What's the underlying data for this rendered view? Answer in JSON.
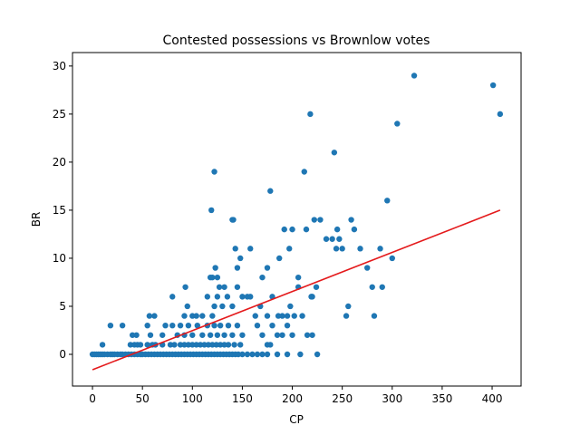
{
  "chart_data": {
    "type": "scatter",
    "title": "Contested possessions vs Brownlow votes",
    "xlabel": "CP",
    "ylabel": "BR",
    "xlim": [
      -20,
      429
    ],
    "ylim": [
      -3.3,
      31.4
    ],
    "xticks": [
      0,
      50,
      100,
      150,
      200,
      250,
      300,
      350,
      400
    ],
    "yticks": [
      0,
      5,
      10,
      15,
      20,
      25,
      30
    ],
    "grid": false,
    "colors": {
      "points": "#1f77b4",
      "fit_line": "#e41a1c"
    },
    "points": [
      [
        0,
        0
      ],
      [
        2,
        0
      ],
      [
        4,
        0
      ],
      [
        6,
        0
      ],
      [
        8,
        0
      ],
      [
        10,
        0
      ],
      [
        12,
        0
      ],
      [
        15,
        0
      ],
      [
        18,
        0
      ],
      [
        20,
        0
      ],
      [
        22,
        0
      ],
      [
        25,
        0
      ],
      [
        28,
        0
      ],
      [
        30,
        0
      ],
      [
        33,
        0
      ],
      [
        36,
        0
      ],
      [
        39,
        0
      ],
      [
        42,
        0
      ],
      [
        45,
        0
      ],
      [
        48,
        0
      ],
      [
        50,
        0
      ],
      [
        53,
        0
      ],
      [
        56,
        0
      ],
      [
        59,
        0
      ],
      [
        62,
        0
      ],
      [
        65,
        0
      ],
      [
        68,
        0
      ],
      [
        71,
        0
      ],
      [
        74,
        0
      ],
      [
        77,
        0
      ],
      [
        80,
        0
      ],
      [
        83,
        0
      ],
      [
        86,
        0
      ],
      [
        89,
        0
      ],
      [
        92,
        0
      ],
      [
        95,
        0
      ],
      [
        98,
        0
      ],
      [
        101,
        0
      ],
      [
        104,
        0
      ],
      [
        107,
        0
      ],
      [
        110,
        0
      ],
      [
        113,
        0
      ],
      [
        116,
        0
      ],
      [
        119,
        0
      ],
      [
        122,
        0
      ],
      [
        125,
        0
      ],
      [
        128,
        0
      ],
      [
        131,
        0
      ],
      [
        134,
        0
      ],
      [
        137,
        0
      ],
      [
        140,
        0
      ],
      [
        143,
        0
      ],
      [
        146,
        0
      ],
      [
        150,
        0
      ],
      [
        155,
        0
      ],
      [
        160,
        0
      ],
      [
        165,
        0
      ],
      [
        170,
        0
      ],
      [
        175,
        0
      ],
      [
        185,
        0
      ],
      [
        195,
        0
      ],
      [
        208,
        0
      ],
      [
        225,
        0
      ],
      [
        10,
        1
      ],
      [
        38,
        1
      ],
      [
        42,
        1
      ],
      [
        45,
        1
      ],
      [
        48,
        1
      ],
      [
        55,
        1
      ],
      [
        60,
        1
      ],
      [
        63,
        1
      ],
      [
        70,
        1
      ],
      [
        78,
        1
      ],
      [
        82,
        1
      ],
      [
        88,
        1
      ],
      [
        92,
        1
      ],
      [
        96,
        1
      ],
      [
        100,
        1
      ],
      [
        104,
        1
      ],
      [
        108,
        1
      ],
      [
        112,
        1
      ],
      [
        116,
        1
      ],
      [
        120,
        1
      ],
      [
        124,
        1
      ],
      [
        128,
        1
      ],
      [
        132,
        1
      ],
      [
        136,
        1
      ],
      [
        142,
        1
      ],
      [
        148,
        1
      ],
      [
        175,
        1
      ],
      [
        178,
        1
      ],
      [
        18,
        3
      ],
      [
        30,
        3
      ],
      [
        40,
        2
      ],
      [
        44,
        2
      ],
      [
        55,
        3
      ],
      [
        58,
        2
      ],
      [
        70,
        2
      ],
      [
        73,
        3
      ],
      [
        80,
        3
      ],
      [
        85,
        2
      ],
      [
        88,
        3
      ],
      [
        92,
        2
      ],
      [
        96,
        3
      ],
      [
        100,
        2
      ],
      [
        105,
        3
      ],
      [
        110,
        2
      ],
      [
        115,
        3
      ],
      [
        118,
        2
      ],
      [
        122,
        3
      ],
      [
        125,
        2
      ],
      [
        128,
        3
      ],
      [
        132,
        2
      ],
      [
        136,
        3
      ],
      [
        140,
        2
      ],
      [
        145,
        3
      ],
      [
        150,
        2
      ],
      [
        165,
        3
      ],
      [
        170,
        2
      ],
      [
        180,
        3
      ],
      [
        185,
        2
      ],
      [
        190,
        2
      ],
      [
        195,
        3
      ],
      [
        200,
        2
      ],
      [
        215,
        2
      ],
      [
        220,
        2
      ],
      [
        57,
        4
      ],
      [
        62,
        4
      ],
      [
        80,
        6
      ],
      [
        92,
        4
      ],
      [
        95,
        5
      ],
      [
        100,
        4
      ],
      [
        104,
        4
      ],
      [
        110,
        4
      ],
      [
        115,
        6
      ],
      [
        120,
        4
      ],
      [
        122,
        5
      ],
      [
        125,
        6
      ],
      [
        130,
        5
      ],
      [
        135,
        6
      ],
      [
        140,
        5
      ],
      [
        145,
        7
      ],
      [
        150,
        6
      ],
      [
        155,
        6
      ],
      [
        158,
        6
      ],
      [
        163,
        4
      ],
      [
        168,
        5
      ],
      [
        175,
        4
      ],
      [
        180,
        6
      ],
      [
        186,
        4
      ],
      [
        190,
        4
      ],
      [
        195,
        4
      ],
      [
        198,
        5
      ],
      [
        202,
        4
      ],
      [
        206,
        7
      ],
      [
        210,
        4
      ],
      [
        220,
        6
      ],
      [
        224,
        7
      ],
      [
        93,
        7
      ],
      [
        118,
        8
      ],
      [
        120,
        8
      ],
      [
        123,
        9
      ],
      [
        125,
        8
      ],
      [
        127,
        7
      ],
      [
        132,
        7
      ],
      [
        140,
        14
      ],
      [
        141,
        14
      ],
      [
        143,
        11
      ],
      [
        145,
        9
      ],
      [
        148,
        10
      ],
      [
        158,
        11
      ],
      [
        170,
        8
      ],
      [
        175,
        9
      ],
      [
        187,
        10
      ],
      [
        192,
        13
      ],
      [
        197,
        11
      ],
      [
        200,
        13
      ],
      [
        206,
        8
      ],
      [
        212,
        19
      ],
      [
        214,
        13
      ],
      [
        218,
        25
      ],
      [
        219,
        6
      ],
      [
        222,
        14
      ],
      [
        228,
        14
      ],
      [
        234,
        12
      ],
      [
        240,
        12
      ],
      [
        242,
        21
      ],
      [
        244,
        11
      ],
      [
        245,
        13
      ],
      [
        247,
        12
      ],
      [
        250,
        11
      ],
      [
        254,
        4
      ],
      [
        256,
        5
      ],
      [
        259,
        14
      ],
      [
        262,
        13
      ],
      [
        268,
        11
      ],
      [
        275,
        9
      ],
      [
        280,
        7
      ],
      [
        282,
        4
      ],
      [
        288,
        11
      ],
      [
        290,
        7
      ],
      [
        295,
        16
      ],
      [
        300,
        10
      ],
      [
        305,
        24
      ],
      [
        322,
        29
      ],
      [
        401,
        28
      ],
      [
        408,
        25
      ],
      [
        119,
        15
      ],
      [
        122,
        19
      ],
      [
        178,
        17
      ]
    ],
    "fit_line": {
      "x": [
        0,
        408
      ],
      "y": [
        -1.6,
        15.0
      ]
    }
  }
}
